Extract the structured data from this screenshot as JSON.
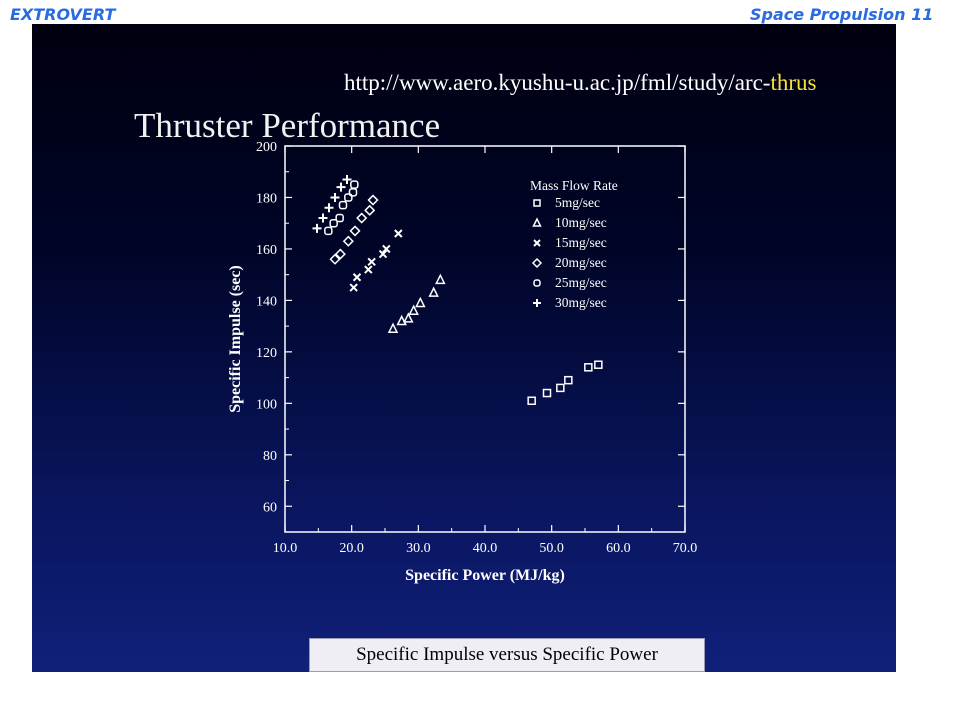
{
  "header": {
    "left": "EXTROVERT",
    "right": "Space Propulsion 11"
  },
  "slide": {
    "url_text": "http://www.aero.kyushu-u.ac.jp/fml/study/arc-",
    "url_highlight": "thrus",
    "title": "Thruster Performance",
    "caption": "Specific Impulse versus Specific Power"
  },
  "colors": {
    "header_text": "#2b6be0",
    "url_highlight": "#f6e23a",
    "slide_background": "#0a1660",
    "plot": "#ffffff"
  },
  "chart_data": {
    "type": "scatter",
    "xlabel": "Specific Power (MJ/kg)",
    "ylabel": "Specific Impulse (sec)",
    "xlim": [
      10,
      70
    ],
    "ylim": [
      50,
      200
    ],
    "x_ticks": [
      "10.0",
      "20.0",
      "30.0",
      "40.0",
      "50.0",
      "60.0",
      "70.0"
    ],
    "y_ticks": [
      "60",
      "80",
      "100",
      "120",
      "140",
      "160",
      "180",
      "200"
    ],
    "legend_title": "Mass Flow Rate",
    "legend_position": "top-right",
    "series": [
      {
        "name": "5mg/sec",
        "marker": "square",
        "points": [
          [
            47,
            101
          ],
          [
            49.3,
            104
          ],
          [
            51.3,
            106
          ],
          [
            52.5,
            109
          ],
          [
            55.5,
            114
          ],
          [
            57,
            115
          ]
        ]
      },
      {
        "name": "10mg/sec",
        "marker": "triangle",
        "points": [
          [
            26.2,
            129
          ],
          [
            27.5,
            132
          ],
          [
            28.5,
            133
          ],
          [
            29.3,
            136
          ],
          [
            30.3,
            139
          ],
          [
            32.3,
            143
          ],
          [
            33.3,
            148
          ]
        ]
      },
      {
        "name": "15mg/sec",
        "marker": "x",
        "points": [
          [
            20.3,
            145
          ],
          [
            20.8,
            149
          ],
          [
            22.5,
            152
          ],
          [
            23,
            155
          ],
          [
            24.7,
            158
          ],
          [
            25.2,
            160
          ],
          [
            27,
            166
          ]
        ]
      },
      {
        "name": "20mg/sec",
        "marker": "diamond",
        "points": [
          [
            17.5,
            156
          ],
          [
            18.3,
            158
          ],
          [
            19.5,
            163
          ],
          [
            20.5,
            167
          ],
          [
            21.5,
            172
          ],
          [
            22.7,
            175
          ],
          [
            23.2,
            179
          ]
        ]
      },
      {
        "name": "25mg/sec",
        "marker": "square-rounded",
        "points": [
          [
            16.5,
            167
          ],
          [
            17.3,
            170
          ],
          [
            18.2,
            172
          ],
          [
            18.7,
            177
          ],
          [
            19.5,
            180
          ],
          [
            20.2,
            182
          ],
          [
            20.4,
            185
          ]
        ]
      },
      {
        "name": "30mg/sec",
        "marker": "plus",
        "points": [
          [
            14.8,
            168
          ],
          [
            15.7,
            172
          ],
          [
            16.6,
            176
          ],
          [
            17.5,
            180
          ],
          [
            18.4,
            184
          ],
          [
            19.3,
            187
          ]
        ]
      }
    ]
  }
}
